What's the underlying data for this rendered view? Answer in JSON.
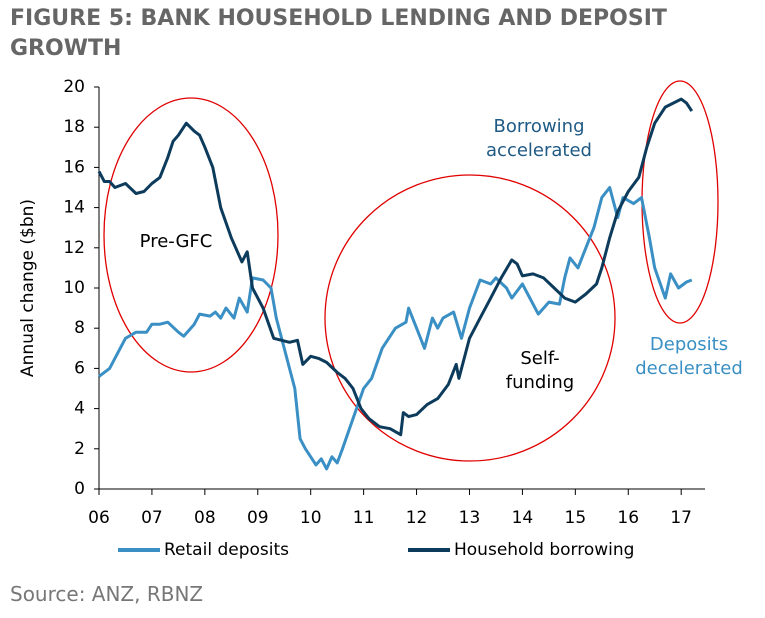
{
  "chart_data": {
    "type": "line",
    "title": "FIGURE 5: BANK HOUSEHOLD LENDING AND DEPOSIT GROWTH",
    "y_label": "Annual change ($bn)",
    "source": "Source: ANZ, RBNZ",
    "xlim": [
      6,
      17.45
    ],
    "xticks": [
      {
        "value": 6,
        "label": "06"
      },
      {
        "value": 7,
        "label": "07"
      },
      {
        "value": 8,
        "label": "08"
      },
      {
        "value": 9,
        "label": "09"
      },
      10,
      11,
      12,
      13,
      14,
      15,
      16,
      17
    ],
    "ylim": [
      0,
      20
    ],
    "yticks": [
      0,
      2,
      4,
      6,
      8,
      10,
      12,
      14,
      16,
      18,
      20
    ],
    "series": [
      {
        "name": "Retail deposits",
        "color": "#3a8fc4",
        "x": [
          6.0,
          6.1,
          6.2,
          6.4,
          6.5,
          6.7,
          6.9,
          7.0,
          7.15,
          7.3,
          7.5,
          7.6,
          7.8,
          7.9,
          8.1,
          8.2,
          8.3,
          8.4,
          8.55,
          8.65,
          8.8,
          8.9,
          9.1,
          9.25,
          9.35,
          9.45,
          9.6,
          9.7,
          9.8,
          9.9,
          10.1,
          10.2,
          10.3,
          10.4,
          10.5,
          10.6,
          10.8,
          11.0,
          11.15,
          11.35,
          11.6,
          11.8,
          11.85,
          12.0,
          12.15,
          12.3,
          12.4,
          12.5,
          12.7,
          12.85,
          13.0,
          13.2,
          13.4,
          13.5,
          13.7,
          13.8,
          14.0,
          14.3,
          14.5,
          14.7,
          14.8,
          14.9,
          15.05,
          15.2,
          15.35,
          15.5,
          15.65,
          15.8,
          15.9,
          16.1,
          16.25,
          16.4,
          16.5,
          16.7,
          16.8,
          16.95,
          17.1,
          17.2
        ],
        "values": [
          5.6,
          5.8,
          6.0,
          7.0,
          7.5,
          7.8,
          7.8,
          8.2,
          8.2,
          8.3,
          7.8,
          7.6,
          8.2,
          8.7,
          8.6,
          8.8,
          8.5,
          9.0,
          8.5,
          9.5,
          8.8,
          10.5,
          10.4,
          10.0,
          8.5,
          7.5,
          6.0,
          5.0,
          2.5,
          2.0,
          1.2,
          1.5,
          1.0,
          1.6,
          1.3,
          2.0,
          3.5,
          5.0,
          5.5,
          7.0,
          8.0,
          8.3,
          9.0,
          8.0,
          7.0,
          8.5,
          8.0,
          8.5,
          8.8,
          7.5,
          9.0,
          10.4,
          10.2,
          10.5,
          10.0,
          9.5,
          10.2,
          8.7,
          9.3,
          9.2,
          10.5,
          11.5,
          11.0,
          12.0,
          13.0,
          14.5,
          15.0,
          13.5,
          14.5,
          14.2,
          14.5,
          12.5,
          11.0,
          9.5,
          10.7,
          10.0,
          10.3,
          10.4
        ]
      },
      {
        "name": "Household borrowing",
        "color": "#0d3b5c",
        "x": [
          6.0,
          6.1,
          6.2,
          6.3,
          6.5,
          6.7,
          6.85,
          7.0,
          7.15,
          7.3,
          7.4,
          7.5,
          7.65,
          7.8,
          7.9,
          8.0,
          8.15,
          8.3,
          8.5,
          8.7,
          8.8,
          8.9,
          9.1,
          9.3,
          9.45,
          9.6,
          9.75,
          9.85,
          10.0,
          10.15,
          10.3,
          10.5,
          10.65,
          10.8,
          10.95,
          11.1,
          11.3,
          11.5,
          11.7,
          11.75,
          11.85,
          12.0,
          12.2,
          12.4,
          12.6,
          12.75,
          12.8,
          13.0,
          13.2,
          13.4,
          13.6,
          13.8,
          13.9,
          14.0,
          14.2,
          14.4,
          14.6,
          14.8,
          15.0,
          15.2,
          15.4,
          15.5,
          15.65,
          15.8,
          16.0,
          16.2,
          16.35,
          16.5,
          16.7,
          16.85,
          17.0,
          17.1,
          17.2
        ],
        "values": [
          15.8,
          15.3,
          15.3,
          15.0,
          15.2,
          14.7,
          14.8,
          15.2,
          15.5,
          16.5,
          17.3,
          17.6,
          18.2,
          17.8,
          17.6,
          17.0,
          16.0,
          14.0,
          12.5,
          11.3,
          11.8,
          10.0,
          9.0,
          7.5,
          7.4,
          7.3,
          7.4,
          6.2,
          6.6,
          6.5,
          6.3,
          5.8,
          5.5,
          5.0,
          4.0,
          3.5,
          3.1,
          3.0,
          2.7,
          3.8,
          3.6,
          3.7,
          4.2,
          4.5,
          5.2,
          6.2,
          5.5,
          7.5,
          8.5,
          9.5,
          10.5,
          11.4,
          11.2,
          10.6,
          10.7,
          10.5,
          10.0,
          9.5,
          9.3,
          9.7,
          10.2,
          11.0,
          12.5,
          13.8,
          14.8,
          15.5,
          17.0,
          18.2,
          19.0,
          19.2,
          19.4,
          19.2,
          18.8
        ]
      }
    ],
    "annotations": [
      {
        "lines": [
          "Pre-GFC"
        ],
        "color": "#000000"
      },
      {
        "lines": [
          "Self-",
          "funding"
        ],
        "color": "#000000"
      },
      {
        "lines": [
          "Borrowing",
          "accelerated"
        ],
        "color": "#1f5a85"
      },
      {
        "lines": [
          "Deposits",
          "decelerated"
        ],
        "color": "#3a8fc4"
      }
    ]
  }
}
